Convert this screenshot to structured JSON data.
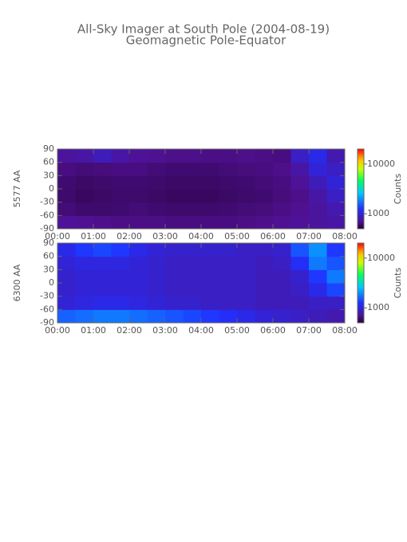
{
  "title": "All-Sky Imager at South Pole (2004-08-19)",
  "subtitle": "Geomagnetic Pole-Equator",
  "chart_data": [
    {
      "type": "heatmap",
      "ylabel": "5577 AA",
      "colorbar_label": "Counts",
      "xbins": [
        0,
        0.5,
        1,
        1.5,
        2,
        2.5,
        3,
        3.5,
        4,
        4.5,
        5,
        5.5,
        6,
        6.5,
        7,
        7.5,
        8
      ],
      "ybins": [
        -90,
        -60,
        -30,
        0,
        30,
        60,
        90
      ],
      "values": [
        [
          700,
          680,
          660,
          650,
          650,
          650,
          640,
          640,
          640,
          640,
          650,
          660,
          680,
          700,
          720,
          750
        ],
        [
          620,
          600,
          600,
          610,
          620,
          610,
          600,
          600,
          600,
          610,
          620,
          630,
          650,
          680,
          720,
          800
        ],
        [
          600,
          580,
          590,
          600,
          600,
          590,
          580,
          580,
          580,
          590,
          600,
          610,
          630,
          660,
          750,
          900
        ],
        [
          610,
          590,
          600,
          610,
          610,
          600,
          590,
          590,
          590,
          600,
          610,
          620,
          640,
          700,
          850,
          1000
        ],
        [
          640,
          620,
          630,
          640,
          640,
          620,
          610,
          610,
          610,
          620,
          630,
          640,
          660,
          750,
          1000,
          900
        ],
        [
          720,
          750,
          850,
          760,
          700,
          680,
          660,
          660,
          650,
          650,
          660,
          650,
          640,
          900,
          1100,
          800
        ]
      ],
      "xlim": [
        0,
        8
      ],
      "ylim": [
        -90,
        90
      ],
      "xticks": [
        {
          "value": 0,
          "label": "00:00"
        },
        {
          "value": 1,
          "label": "01:00"
        },
        {
          "value": 2,
          "label": "02:00"
        },
        {
          "value": 3,
          "label": "03:00"
        },
        {
          "value": 4,
          "label": "04:00"
        },
        {
          "value": 5,
          "label": "05:00"
        },
        {
          "value": 6,
          "label": "06:00"
        },
        {
          "value": 7,
          "label": "07:00"
        },
        {
          "value": 8,
          "label": "08:00"
        }
      ],
      "yticks": [
        90,
        60,
        30,
        0,
        -30,
        -60,
        -90
      ],
      "zlim": [
        500,
        20000
      ],
      "zticks": [
        1000,
        10000
      ],
      "zscale": "log"
    },
    {
      "type": "heatmap",
      "ylabel": "6300 AA",
      "colorbar_label": "Counts",
      "xbins": [
        0,
        0.5,
        1,
        1.5,
        2,
        2.5,
        3,
        3.5,
        4,
        4.5,
        5,
        5.5,
        6,
        6.5,
        7,
        7.5,
        8
      ],
      "ybins": [
        -90,
        -60,
        -30,
        0,
        30,
        60,
        90
      ],
      "values": [
        [
          1600,
          1700,
          1800,
          1800,
          1700,
          1600,
          1500,
          1400,
          1300,
          1200,
          1100,
          1000,
          950,
          900,
          850,
          800
        ],
        [
          1000,
          1050,
          1100,
          1100,
          1050,
          1000,
          950,
          950,
          900,
          900,
          900,
          850,
          850,
          850,
          900,
          900
        ],
        [
          950,
          1000,
          1000,
          1000,
          1000,
          950,
          900,
          900,
          900,
          900,
          900,
          850,
          850,
          900,
          1100,
          1400
        ],
        [
          950,
          1000,
          1000,
          1000,
          1000,
          950,
          900,
          900,
          900,
          900,
          900,
          850,
          850,
          950,
          1300,
          1800
        ],
        [
          1000,
          1050,
          1050,
          1050,
          1000,
          950,
          900,
          900,
          900,
          900,
          900,
          850,
          900,
          1200,
          1800,
          1500
        ],
        [
          1100,
          1300,
          1400,
          1300,
          1100,
          1000,
          950,
          950,
          950,
          950,
          900,
          900,
          950,
          1500,
          2000,
          1300
        ]
      ],
      "xlim": [
        0,
        8
      ],
      "ylim": [
        -90,
        90
      ],
      "xticks": [
        {
          "value": 0,
          "label": "00:00"
        },
        {
          "value": 1,
          "label": "01:00"
        },
        {
          "value": 2,
          "label": "02:00"
        },
        {
          "value": 3,
          "label": "03:00"
        },
        {
          "value": 4,
          "label": "04:00"
        },
        {
          "value": 5,
          "label": "05:00"
        },
        {
          "value": 6,
          "label": "06:00"
        },
        {
          "value": 7,
          "label": "07:00"
        },
        {
          "value": 8,
          "label": "08:00"
        }
      ],
      "yticks": [
        90,
        60,
        30,
        0,
        -30,
        -60,
        -90
      ],
      "zlim": [
        500,
        20000
      ],
      "zticks": [
        1000,
        10000
      ],
      "zscale": "log"
    }
  ]
}
